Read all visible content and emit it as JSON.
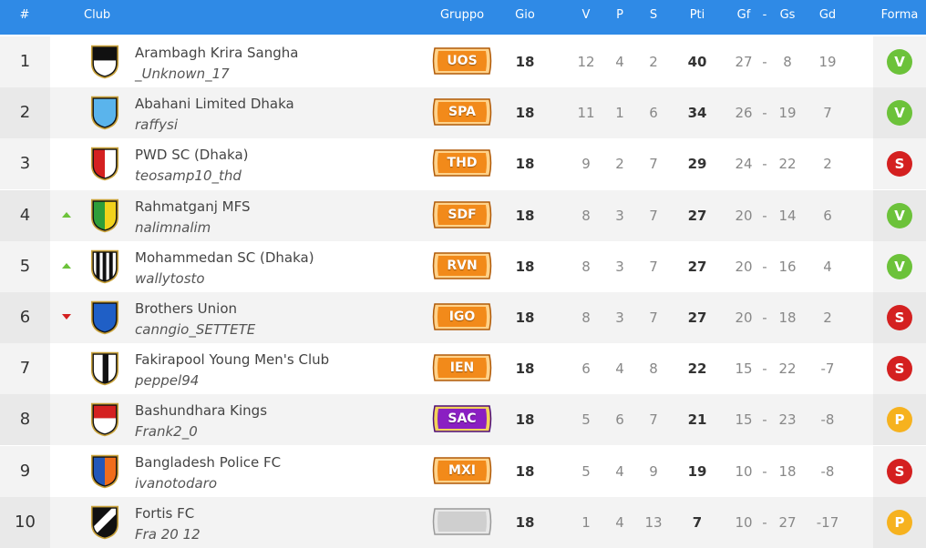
{
  "header": {
    "pos": "#",
    "club": "Club",
    "gruppo": "Gruppo",
    "gio": "Gio",
    "v": "V",
    "p": "P",
    "s": "S",
    "pti": "Pti",
    "gf": "Gf",
    "dash": "-",
    "gs": "Gs",
    "gd": "Gd",
    "forma": "Forma"
  },
  "colors": {
    "header_bg": "#2f8ae6",
    "badge_orange": "#f28a1a",
    "badge_purple": "#8a1fc2",
    "badge_empty": "#cfcfcf",
    "forma_v": "#6cc23a",
    "forma_s": "#d42020",
    "forma_p": "#f6b21f",
    "trend_up": "#6cc23a",
    "trend_down": "#d42020"
  },
  "rows": [
    {
      "pos": "1",
      "club": "Arambagh Krira Sangha",
      "manager": "_Unknown_17",
      "trend": "none",
      "crest": "black-white-horizontal",
      "gruppo": "UOS",
      "badge": "orange",
      "gio": "18",
      "v": "12",
      "p": "4",
      "s": "2",
      "pti": "40",
      "gf": "27",
      "gs": "8",
      "gd": "19",
      "forma": "V"
    },
    {
      "pos": "2",
      "club": "Abahani Limited Dhaka",
      "manager": "raffysi",
      "trend": "none",
      "crest": "light-blue",
      "gruppo": "SPA",
      "badge": "orange",
      "gio": "18",
      "v": "11",
      "p": "1",
      "s": "6",
      "pti": "34",
      "gf": "26",
      "gs": "19",
      "gd": "7",
      "forma": "V"
    },
    {
      "pos": "3",
      "club": "PWD SC (Dhaka)",
      "manager": "teosamp10_thd",
      "trend": "none",
      "crest": "red-white-vertical",
      "gruppo": "THD",
      "badge": "orange",
      "gio": "18",
      "v": "9",
      "p": "2",
      "s": "7",
      "pti": "29",
      "gf": "24",
      "gs": "22",
      "gd": "2",
      "forma": "S"
    },
    {
      "pos": "4",
      "club": "Rahmatganj MFS",
      "manager": "nalimnalim",
      "trend": "up",
      "crest": "green-yellow",
      "gruppo": "SDF",
      "badge": "orange",
      "gio": "18",
      "v": "8",
      "p": "3",
      "s": "7",
      "pti": "27",
      "gf": "20",
      "gs": "14",
      "gd": "6",
      "forma": "V"
    },
    {
      "pos": "5",
      "club": "Mohammedan SC (Dhaka)",
      "manager": "wallytosto",
      "trend": "up",
      "crest": "black-white-stripes",
      "gruppo": "RVN",
      "badge": "orange",
      "gio": "18",
      "v": "8",
      "p": "3",
      "s": "7",
      "pti": "27",
      "gf": "20",
      "gs": "16",
      "gd": "4",
      "forma": "V"
    },
    {
      "pos": "6",
      "club": "Brothers Union",
      "manager": "canngio_SETTETE",
      "trend": "down",
      "crest": "blue",
      "gruppo": "IGO",
      "badge": "orange",
      "gio": "18",
      "v": "8",
      "p": "3",
      "s": "7",
      "pti": "27",
      "gf": "20",
      "gs": "18",
      "gd": "2",
      "forma": "S"
    },
    {
      "pos": "7",
      "club": "Fakirapool Young Men's Club",
      "manager": "peppel94",
      "trend": "none",
      "crest": "white-black-vertical",
      "gruppo": "IEN",
      "badge": "orange",
      "gio": "18",
      "v": "6",
      "p": "4",
      "s": "8",
      "pti": "22",
      "gf": "15",
      "gs": "22",
      "gd": "-7",
      "forma": "S"
    },
    {
      "pos": "8",
      "club": "Bashundhara Kings",
      "manager": "Frank2_0",
      "trend": "none",
      "crest": "red-white-horizontal",
      "gruppo": "SAC",
      "badge": "purple",
      "gio": "18",
      "v": "5",
      "p": "6",
      "s": "7",
      "pti": "21",
      "gf": "15",
      "gs": "23",
      "gd": "-8",
      "forma": "P"
    },
    {
      "pos": "9",
      "club": "Bangladesh Police FC",
      "manager": "ivanotodaro",
      "trend": "none",
      "crest": "blue-orange",
      "gruppo": "MXI",
      "badge": "orange",
      "gio": "18",
      "v": "5",
      "p": "4",
      "s": "9",
      "pti": "19",
      "gf": "10",
      "gs": "18",
      "gd": "-8",
      "forma": "S"
    },
    {
      "pos": "10",
      "club": "Fortis FC",
      "manager": "Fra 20 12",
      "trend": "none",
      "crest": "black-white-diagonal",
      "gruppo": "",
      "badge": "empty",
      "gio": "18",
      "v": "1",
      "p": "4",
      "s": "13",
      "pti": "7",
      "gf": "10",
      "gs": "27",
      "gd": "-17",
      "forma": "P"
    }
  ]
}
